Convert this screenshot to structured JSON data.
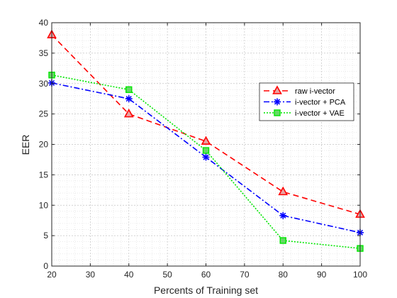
{
  "chart_data": {
    "type": "line",
    "xlabel": "Percents of Training set",
    "ylabel": "EER",
    "xlim": [
      20,
      100
    ],
    "ylim": [
      0,
      40
    ],
    "x_ticks": [
      20,
      30,
      40,
      50,
      60,
      70,
      80,
      90,
      100
    ],
    "y_ticks": [
      0,
      5,
      10,
      15,
      20,
      25,
      30,
      35,
      40
    ],
    "grid": true,
    "minor_grid": true,
    "legend_position": "right",
    "series": [
      {
        "name": "raw i-vector",
        "x": [
          20,
          40,
          60,
          80,
          100
        ],
        "y": [
          38,
          25,
          20.5,
          12.2,
          8.5
        ],
        "color": "#ff0000",
        "line_style": "dashed",
        "marker": "triangle"
      },
      {
        "name": "i-vector + PCA",
        "x": [
          20,
          40,
          60,
          80,
          100
        ],
        "y": [
          30.1,
          27.5,
          17.9,
          8.3,
          5.5
        ],
        "color": "#0000ff",
        "line_style": "dashdot",
        "marker": "asterisk"
      },
      {
        "name": "i-vector + VAE",
        "x": [
          20,
          40,
          60,
          80,
          100
        ],
        "y": [
          31.4,
          29,
          19,
          4.2,
          2.9
        ],
        "color": "#00e600",
        "line_style": "dotted",
        "marker": "square"
      }
    ]
  }
}
